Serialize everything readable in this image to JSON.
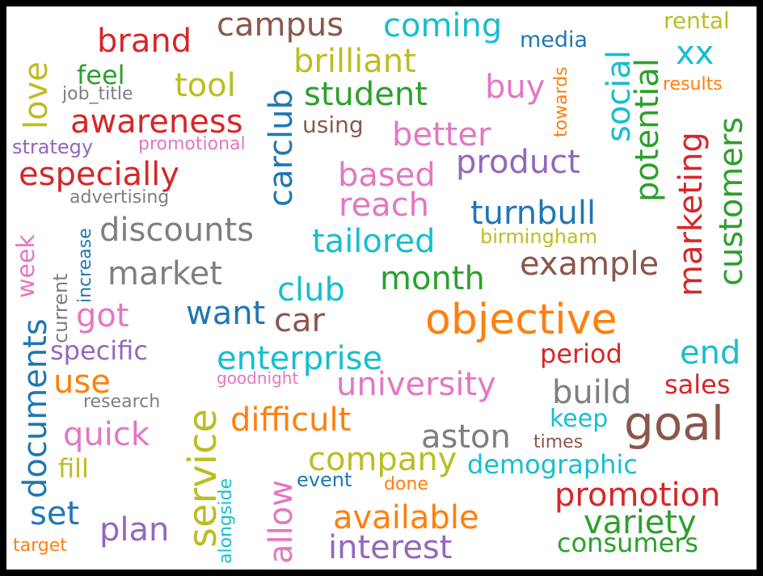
{
  "colors": {
    "red": "#d62728",
    "brown": "#8c564b",
    "cyan": "#17becf",
    "olive": "#bcbd22",
    "blue": "#1f77b4",
    "green": "#2ca02c",
    "pink": "#e377c2",
    "purple": "#9467bd",
    "gray": "#7f7f7f",
    "orange": "#ff7f0e"
  },
  "words": [
    "brand",
    "campus",
    "coming",
    "media",
    "rental",
    "xx",
    "brilliant",
    "feel",
    "tool",
    "love",
    "job_title",
    "student",
    "buy",
    "towards",
    "results",
    "awareness",
    "using",
    "strategy",
    "promotional",
    "better",
    "social",
    "especially",
    "product",
    "based",
    "carclub",
    "advertising",
    "reach",
    "turnbull",
    "potential",
    "customers",
    "marketing",
    "discounts",
    "increase",
    "week",
    "current",
    "tailored",
    "birmingham",
    "example",
    "market",
    "month",
    "club",
    "got",
    "want",
    "car",
    "objective",
    "documents",
    "specific",
    "enterprise",
    "period",
    "end",
    "use",
    "goodnight",
    "university",
    "build",
    "sales",
    "service",
    "research",
    "difficult",
    "keep",
    "goal",
    "quick",
    "aston",
    "times",
    "company",
    "fill",
    "demographic",
    "allow",
    "alongside",
    "event",
    "done",
    "promotion",
    "set",
    "available",
    "variety",
    "plan",
    "interest",
    "consumers",
    "target"
  ]
}
